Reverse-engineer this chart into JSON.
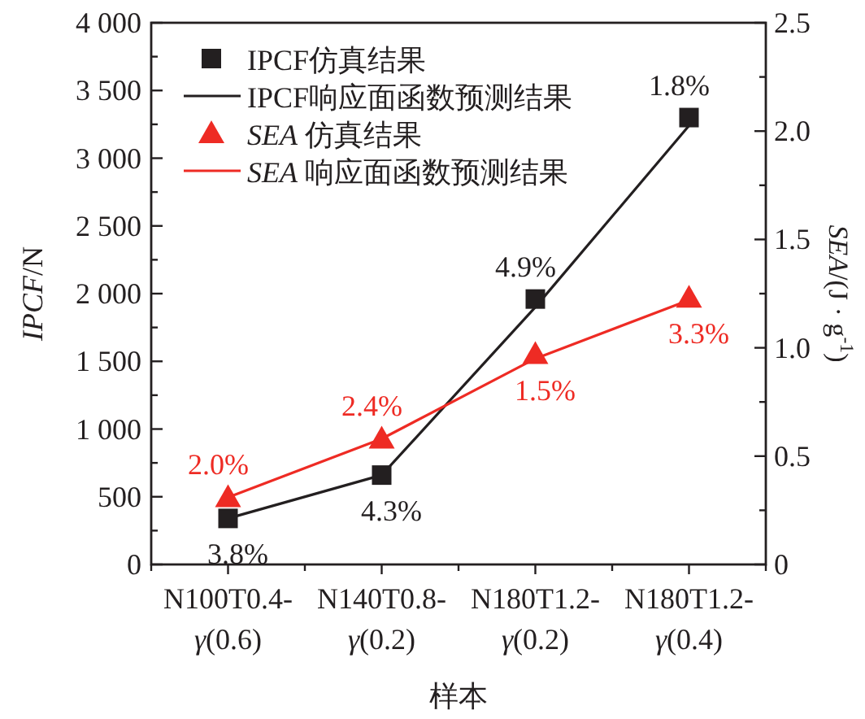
{
  "chart_data": {
    "type": "line",
    "xlabel": "样本",
    "ylabel": "*IPCF*/N",
    "y2label": "*SEA*/(J · g$^{-1}$)",
    "categories": [
      "N100T0.4-*γ*(0.6)",
      "N140T0.8-*γ*(0.2)",
      "N180T1.2-*γ*(0.2)",
      "N180T1.2-*γ*(0.4)"
    ],
    "ylim": [
      0,
      4000
    ],
    "yticks": [
      {
        "value": 0,
        "label": "0"
      },
      {
        "value": 250,
        "label": null
      },
      {
        "value": 500,
        "label": "500"
      },
      {
        "value": 750,
        "label": null
      },
      {
        "value": 1000,
        "label": "1 000"
      },
      {
        "value": 1250,
        "label": null
      },
      {
        "value": 1500,
        "label": "1 500"
      },
      {
        "value": 1750,
        "label": null
      },
      {
        "value": 2000,
        "label": "2 000"
      },
      {
        "value": 2250,
        "label": null
      },
      {
        "value": 2500,
        "label": "2 500"
      },
      {
        "value": 2750,
        "label": null
      },
      {
        "value": 3000,
        "label": "3 000"
      },
      {
        "value": 3250,
        "label": null
      },
      {
        "value": 3500,
        "label": "3 500"
      },
      {
        "value": 3750,
        "label": null
      },
      {
        "value": 4000,
        "label": "4 000"
      }
    ],
    "y2lim": [
      0,
      2.5
    ],
    "y2ticks": [
      0,
      {
        "value": 0.25,
        "label": null
      },
      0.5,
      {
        "value": 0.75,
        "label": null
      },
      {
        "value": 1.0,
        "label": "1.0"
      },
      {
        "value": 1.25,
        "label": null
      },
      1.5,
      {
        "value": 1.75,
        "label": null
      },
      {
        "value": 2.0,
        "label": "2.0"
      },
      {
        "value": 2.25,
        "label": null
      },
      2.5
    ],
    "legend": "top left",
    "series": [
      {
        "name": "IPCF仿真结果",
        "type": "scatter",
        "marker": "square",
        "color": "#231f20",
        "values": [
          340,
          660,
          1960,
          3300
        ]
      },
      {
        "name": "IPCF响应面函数预测结果",
        "type": "line",
        "marker": "none",
        "color": "#231f20",
        "values": [
          340,
          660,
          1900,
          3240
        ]
      },
      {
        "name": "*SEA* 仿真结果",
        "type": "scatter",
        "marker": "triangle",
        "axis": "y2",
        "color": "#ee2b24",
        "values": [
          0.31,
          0.58,
          0.97,
          1.23
        ]
      },
      {
        "name": "*SEA* 响应面函数预测结果",
        "type": "line",
        "marker": "none",
        "axis": "y2",
        "color": "#ee2b24",
        "values": [
          0.31,
          0.58,
          0.95,
          1.22
        ]
      }
    ],
    "annotations": [
      {
        "text": "3.8%",
        "x": "N100T0.4-*γ*(0.6)",
        "y": 340
      },
      {
        "text": "4.3%",
        "x": "N140T0.8-*γ*(0.2)",
        "y": 660
      },
      {
        "text": "4.9%",
        "x": "N180T1.2-*γ*(0.2)",
        "y": 1960
      },
      {
        "text": "1.8%",
        "x": "N180T1.2-*γ*(0.4)",
        "y": 3300
      },
      {
        "text": "2.0%",
        "x": "N100T0.4-*γ*(0.6)",
        "y": 496
      },
      {
        "text": "2.4%",
        "x": "N140T0.8-*γ*(0.2)",
        "y": 928
      },
      {
        "text": "1.5%",
        "x": "N180T1.2-*γ*(0.2)",
        "y": 1552
      },
      {
        "text": "3.3%",
        "x": "N180T1.2-*γ*(0.4)",
        "y": 1968
      }
    ]
  }
}
